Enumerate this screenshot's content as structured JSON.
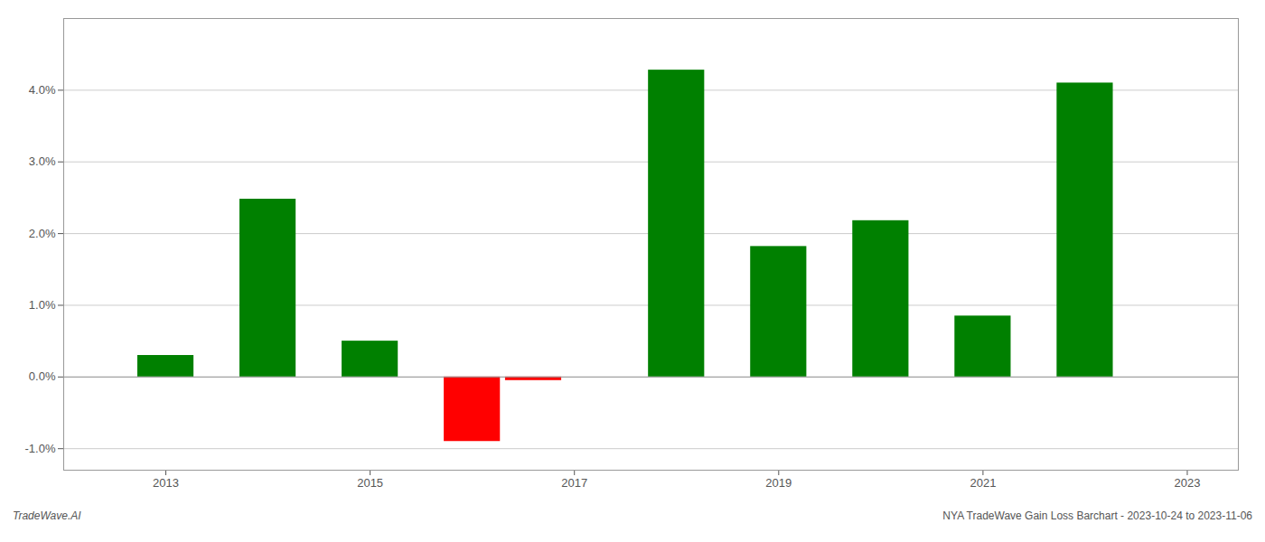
{
  "chart_data": {
    "type": "bar",
    "x": [
      2013,
      2014,
      2015,
      2016,
      2016.6,
      2018,
      2019,
      2020,
      2021,
      2022
    ],
    "values": [
      0.003,
      0.0248,
      0.005,
      -0.009,
      -0.0005,
      0.0428,
      0.0182,
      0.0218,
      0.0085,
      0.041
    ],
    "colors": [
      "#008000",
      "#008000",
      "#008000",
      "#ff0000",
      "#ff0000",
      "#008000",
      "#008000",
      "#008000",
      "#008000",
      "#008000"
    ],
    "xlim": [
      2012.0,
      2023.5
    ],
    "xticks": [
      2013,
      2015,
      2017,
      2019,
      2021,
      2023
    ],
    "ylim": [
      -0.013,
      0.05
    ],
    "yticks": [
      {
        "value": -0.01,
        "label": "-1.0%"
      },
      {
        "value": 0.0,
        "label": "0.0%"
      },
      {
        "value": 0.01,
        "label": "1.0%"
      },
      {
        "value": 0.02,
        "label": "2.0%"
      },
      {
        "value": 0.03,
        "label": "3.0%"
      },
      {
        "value": 0.04,
        "label": "4.0%"
      }
    ],
    "grid": true,
    "annotations": [
      "TradeWave.AI",
      "NYA TradeWave Gain Loss Barchart - 2023-10-24 to 2023-11-06"
    ]
  }
}
